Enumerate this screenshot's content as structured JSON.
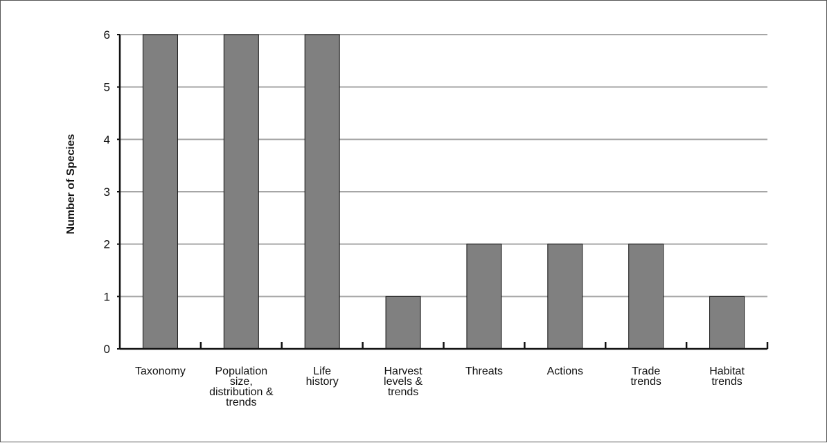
{
  "chart_data": {
    "type": "bar",
    "title": "",
    "xlabel": "",
    "ylabel": "Number of Species",
    "ylim": [
      0,
      6
    ],
    "yticks": [
      0,
      1,
      2,
      3,
      4,
      5,
      6
    ],
    "grid": true,
    "legend": "none",
    "categories": [
      "Taxonomy",
      "Population size, distribution & trends",
      "Life history",
      "Harvest levels & trends",
      "Threats",
      "Actions",
      "Trade trends",
      "Habitat trends"
    ],
    "category_lines": [
      [
        "Taxonomy"
      ],
      [
        "Population",
        "size,",
        "distribution &",
        "trends"
      ],
      [
        "Life",
        "history"
      ],
      [
        "Harvest",
        "levels &",
        "trends"
      ],
      [
        "Threats"
      ],
      [
        "Actions"
      ],
      [
        "Trade",
        "trends"
      ],
      [
        "Habitat",
        "trends"
      ]
    ],
    "values": [
      6,
      6,
      6,
      1,
      2,
      2,
      2,
      1
    ],
    "colors": {
      "bar": "#808080",
      "bar_outline": "#111111",
      "grid": "#a6a6a6",
      "axis": "#111111"
    }
  }
}
